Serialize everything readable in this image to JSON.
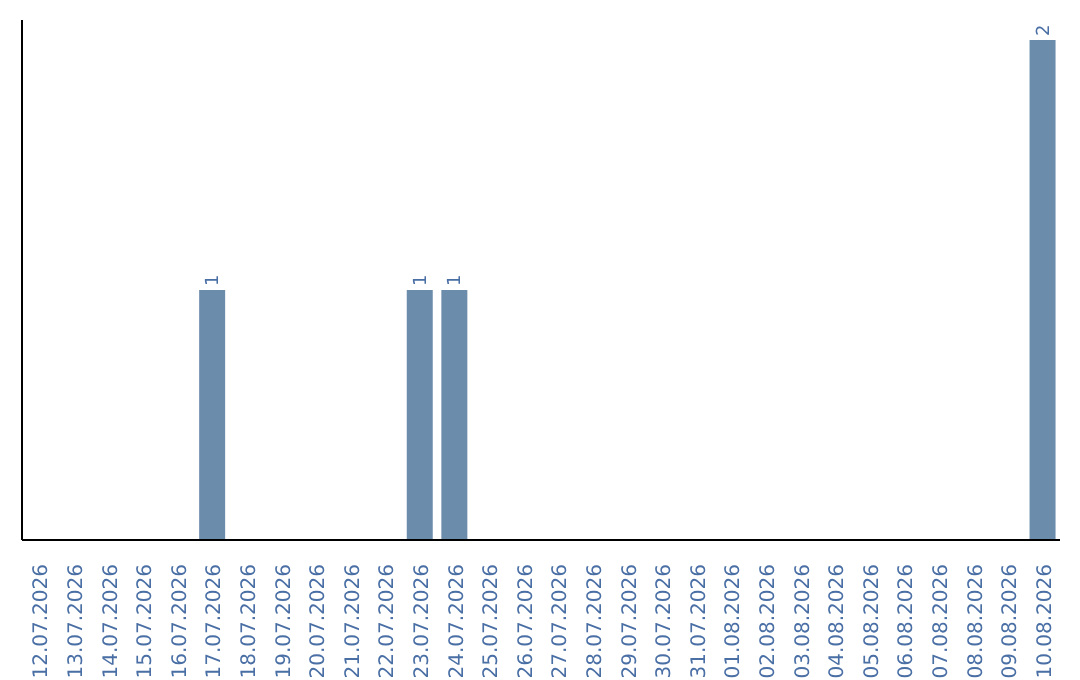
{
  "chart_data": {
    "type": "bar",
    "categories": [
      "12.07.2026",
      "13.07.2026",
      "14.07.2026",
      "15.07.2026",
      "16.07.2026",
      "17.07.2026",
      "18.07.2026",
      "19.07.2026",
      "20.07.2026",
      "21.07.2026",
      "22.07.2026",
      "23.07.2026",
      "24.07.2026",
      "25.07.2026",
      "26.07.2026",
      "27.07.2026",
      "28.07.2026",
      "29.07.2026",
      "30.07.2026",
      "31.07.2026",
      "01.08.2026",
      "02.08.2026",
      "03.08.2026",
      "04.08.2026",
      "05.08.2026",
      "06.08.2026",
      "07.08.2026",
      "08.08.2026",
      "09.08.2026",
      "10.08.2026"
    ],
    "values": [
      0,
      0,
      0,
      0,
      0,
      1,
      0,
      0,
      0,
      0,
      0,
      1,
      1,
      0,
      0,
      0,
      0,
      0,
      0,
      0,
      0,
      0,
      0,
      0,
      0,
      0,
      0,
      0,
      0,
      2
    ],
    "value_labels": [
      null,
      null,
      null,
      null,
      null,
      "1",
      null,
      null,
      null,
      null,
      null,
      "1",
      "1",
      null,
      null,
      null,
      null,
      null,
      null,
      null,
      null,
      null,
      null,
      null,
      null,
      null,
      null,
      null,
      null,
      "2"
    ],
    "color": "#6b8cab",
    "grid": false,
    "legend": false
  }
}
